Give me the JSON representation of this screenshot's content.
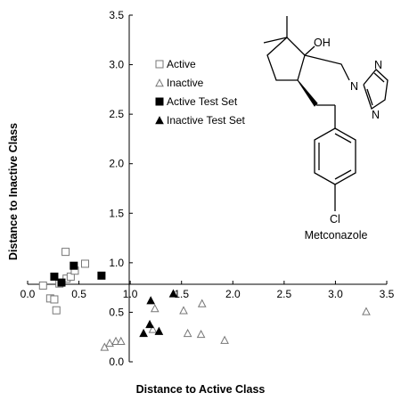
{
  "chart_data": {
    "type": "scatter",
    "xlabel": "Distance to Active Class",
    "ylabel": "Distance to Inactive Class",
    "xlim": [
      0.0,
      3.5
    ],
    "ylim": [
      0.0,
      3.5
    ],
    "x_ticks": [
      "0.0",
      "0.5",
      "1.0",
      "1.5",
      "2.0",
      "2.5",
      "3.0",
      "3.5"
    ],
    "y_ticks": [
      "0.0",
      "0.5",
      "1.0",
      "1.5",
      "2.0",
      "2.5",
      "3.0",
      "3.5"
    ],
    "grid": false,
    "legend_position": "top-center",
    "series": [
      {
        "name": "Active",
        "marker": "open-square",
        "points": [
          {
            "x": 0.15,
            "y": 0.77
          },
          {
            "x": 0.22,
            "y": 0.64
          },
          {
            "x": 0.26,
            "y": 0.63
          },
          {
            "x": 0.28,
            "y": 0.52
          },
          {
            "x": 0.31,
            "y": 0.79
          },
          {
            "x": 0.38,
            "y": 0.84
          },
          {
            "x": 0.42,
            "y": 0.86
          },
          {
            "x": 0.46,
            "y": 0.92
          },
          {
            "x": 0.56,
            "y": 0.99
          },
          {
            "x": 0.37,
            "y": 1.11
          }
        ]
      },
      {
        "name": "Inactive",
        "marker": "open-triangle",
        "points": [
          {
            "x": 0.75,
            "y": 0.15
          },
          {
            "x": 0.8,
            "y": 0.19
          },
          {
            "x": 0.86,
            "y": 0.21
          },
          {
            "x": 0.91,
            "y": 0.21
          },
          {
            "x": 1.22,
            "y": 0.33
          },
          {
            "x": 1.24,
            "y": 0.54
          },
          {
            "x": 1.52,
            "y": 0.52
          },
          {
            "x": 1.56,
            "y": 0.29
          },
          {
            "x": 1.69,
            "y": 0.28
          },
          {
            "x": 1.7,
            "y": 0.59
          },
          {
            "x": 1.92,
            "y": 0.22
          },
          {
            "x": 3.3,
            "y": 0.51
          }
        ]
      },
      {
        "name": "Active Test Set",
        "marker": "filled-square",
        "points": [
          {
            "x": 0.26,
            "y": 0.86
          },
          {
            "x": 0.33,
            "y": 0.8
          },
          {
            "x": 0.45,
            "y": 0.97
          },
          {
            "x": 0.72,
            "y": 0.87
          }
        ]
      },
      {
        "name": "Inactive Test Set",
        "marker": "filled-triangle",
        "points": [
          {
            "x": 1.13,
            "y": 0.29
          },
          {
            "x": 1.19,
            "y": 0.38
          },
          {
            "x": 1.28,
            "y": 0.31
          },
          {
            "x": 1.2,
            "y": 0.62
          },
          {
            "x": 1.42,
            "y": 0.69
          }
        ]
      }
    ],
    "inset": {
      "atom_oh": "OH",
      "atom_n1": "N",
      "atom_n2": "N",
      "atom_n3": "N",
      "atom_cl": "Cl",
      "label": "Metconazole"
    }
  }
}
